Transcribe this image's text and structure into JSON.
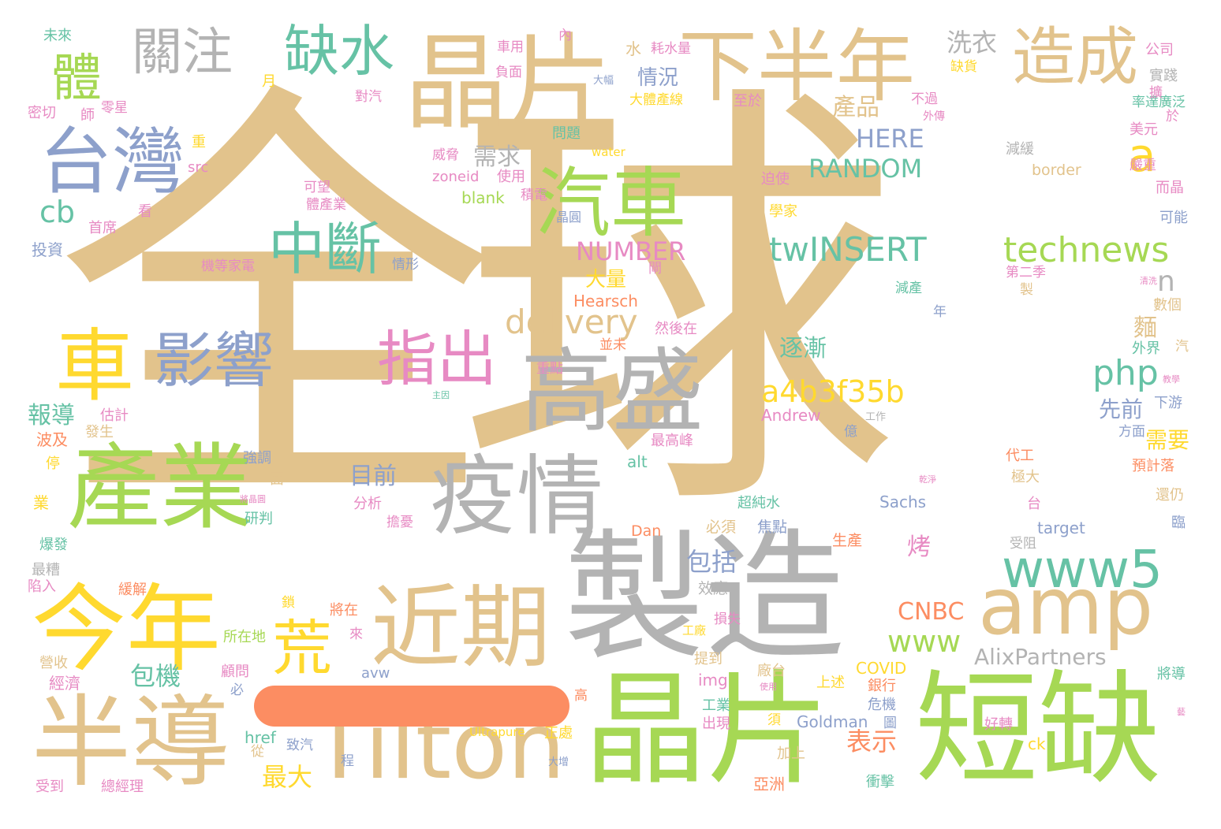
{
  "palette": {
    "tan": "#e2c38c",
    "gray": "#b3b3b3",
    "green": "#a6d854",
    "teal": "#66c2a5",
    "blue": "#8da0cb",
    "pink": "#e78ac3",
    "yellow": "#ffd92f",
    "orange": "#fc8d62"
  },
  "stroke_color": "#fc8d62",
  "words": [
    {
      "id": "quanqiu",
      "text": "全球",
      "color": "#e2c38c"
    },
    {
      "id": "jingpian-top",
      "text": "晶片",
      "color": "#e2c38c"
    },
    {
      "id": "xiabannian",
      "text": "下半年",
      "color": "#e2c38c"
    },
    {
      "id": "zaocheng",
      "text": "造成",
      "color": "#e2c38c"
    },
    {
      "id": "guanzhu",
      "text": "關注",
      "color": "#b3b3b3"
    },
    {
      "id": "queshui",
      "text": "缺水",
      "color": "#66c2a5"
    },
    {
      "id": "ti",
      "text": "體",
      "color": "#a6d854"
    },
    {
      "id": "taiwan",
      "text": "台灣",
      "color": "#8da0cb"
    },
    {
      "id": "qiche",
      "text": "汽車",
      "color": "#a6d854"
    },
    {
      "id": "zhongduan",
      "text": "中斷",
      "color": "#66c2a5"
    },
    {
      "id": "che",
      "text": "車",
      "color": "#ffd92f"
    },
    {
      "id": "yingxiang",
      "text": "影響",
      "color": "#8da0cb"
    },
    {
      "id": "zhichu",
      "text": "指出",
      "color": "#e78ac3"
    },
    {
      "id": "gaosheng",
      "text": "高盛",
      "color": "#b3b3b3"
    },
    {
      "id": "chanye",
      "text": "產業",
      "color": "#a6d854"
    },
    {
      "id": "yiqing",
      "text": "疫情",
      "color": "#b3b3b3"
    },
    {
      "id": "zhizao",
      "text": "製造",
      "color": "#b3b3b3"
    },
    {
      "id": "jinnian",
      "text": "今年",
      "color": "#ffd92f"
    },
    {
      "id": "jinqi",
      "text": "近期",
      "color": "#e2c38c"
    },
    {
      "id": "huang",
      "text": "荒",
      "color": "#ffd92f"
    },
    {
      "id": "bandao",
      "text": "半導",
      "color": "#e2c38c"
    },
    {
      "id": "tilton",
      "text": "Tilton",
      "color": "#e2c38c"
    },
    {
      "id": "jingpian-bottom",
      "text": "晶片",
      "color": "#a6d854"
    },
    {
      "id": "duanque",
      "text": "短缺",
      "color": "#a6d854"
    },
    {
      "id": "amp",
      "text": "amp",
      "color": "#e2c38c"
    },
    {
      "id": "www5",
      "text": "www5",
      "color": "#66c2a5"
    },
    {
      "id": "technews",
      "text": "technews",
      "color": "#a6d854"
    },
    {
      "id": "twinsert",
      "text": "twINSERT",
      "color": "#66c2a5"
    },
    {
      "id": "a4b3f35b",
      "text": "a4b3f35b",
      "color": "#ffd92f"
    },
    {
      "id": "delivery",
      "text": "delivery",
      "color": "#e2c38c"
    },
    {
      "id": "php",
      "text": "php",
      "color": "#66c2a5"
    },
    {
      "id": "a",
      "text": "a",
      "color": "#ffd92f"
    },
    {
      "id": "cb",
      "text": "cb",
      "color": "#66c2a5"
    },
    {
      "id": "random",
      "text": "RANDOM",
      "color": "#66c2a5"
    },
    {
      "id": "here",
      "text": "HERE",
      "color": "#8da0cb"
    },
    {
      "id": "number",
      "text": "NUMBER",
      "color": "#e78ac3"
    },
    {
      "id": "www",
      "text": "www",
      "color": "#a6d854"
    },
    {
      "id": "cnbc",
      "text": "CNBC",
      "color": "#fc8d62"
    },
    {
      "id": "alixpartners",
      "text": "AlixPartners",
      "color": "#b3b3b3"
    },
    {
      "id": "n",
      "text": "n",
      "color": "#b3b3b3"
    },
    {
      "id": "xiyi",
      "text": "洗衣",
      "color": "#b3b3b3"
    },
    {
      "id": "chanpin",
      "text": "產品",
      "color": "#e2c38c"
    },
    {
      "id": "qingkuang",
      "text": "情況",
      "color": "#8da0cb"
    },
    {
      "id": "xuqiu",
      "text": "需求",
      "color": "#b3b3b3"
    },
    {
      "id": "zhujian",
      "text": "逐漸",
      "color": "#66c2a5"
    },
    {
      "id": "daliang",
      "text": "大量",
      "color": "#ffd92f"
    },
    {
      "id": "baodao",
      "text": "報導",
      "color": "#66c2a5"
    },
    {
      "id": "muqian",
      "text": "目前",
      "color": "#8da0cb"
    },
    {
      "id": "baokuo",
      "text": "包括",
      "color": "#8da0cb"
    },
    {
      "id": "baoji",
      "text": "包機",
      "color": "#66c2a5"
    },
    {
      "id": "zuida",
      "text": "最大",
      "color": "#ffd92f"
    },
    {
      "id": "biaoshi",
      "text": "表示",
      "color": "#fc8d62"
    },
    {
      "id": "xianqian",
      "text": "先前",
      "color": "#8da0cb"
    },
    {
      "id": "xuyao",
      "text": "需要",
      "color": "#ffd92f"
    },
    {
      "id": "kao",
      "text": "烤",
      "color": "#e78ac3"
    },
    {
      "id": "mian",
      "text": "麵",
      "color": "#e2c38c"
    },
    {
      "id": "weilai",
      "text": "未來",
      "color": "#66c2a5"
    },
    {
      "id": "mimie",
      "text": "密切",
      "color": "#e78ac3"
    },
    {
      "id": "touzi",
      "text": "投資",
      "color": "#8da0cb"
    },
    {
      "id": "shouxi",
      "text": "首席",
      "color": "#e78ac3"
    },
    {
      "id": "gongsi",
      "text": "公司",
      "color": "#e78ac3"
    },
    {
      "id": "shijian",
      "text": "實踐",
      "color": "#b3b3b3"
    },
    {
      "id": "meiyuan",
      "text": "美元",
      "color": "#e78ac3"
    },
    {
      "id": "yanzhong",
      "text": "嚴重",
      "color": "#e78ac3"
    },
    {
      "id": "erjing",
      "text": "而晶",
      "color": "#e78ac3"
    },
    {
      "id": "keneng",
      "text": "可能",
      "color": "#8da0cb"
    },
    {
      "id": "src",
      "text": "src",
      "color": "#e78ac3"
    },
    {
      "id": "water",
      "text": "water",
      "color": "#ffd92f"
    },
    {
      "id": "border",
      "text": "border",
      "color": "#e2c38c"
    },
    {
      "id": "zoneid",
      "text": "zoneid",
      "color": "#e78ac3"
    },
    {
      "id": "shiyong",
      "text": "使用",
      "color": "#e78ac3"
    },
    {
      "id": "blank",
      "text": "blank",
      "color": "#a6d854"
    },
    {
      "id": "hearsch",
      "text": "Hearsch",
      "color": "#fc8d62"
    },
    {
      "id": "andrew",
      "text": "Andrew",
      "color": "#e78ac3"
    },
    {
      "id": "alt",
      "text": "alt",
      "color": "#66c2a5"
    },
    {
      "id": "dan",
      "text": "Dan",
      "color": "#fc8d62"
    },
    {
      "id": "sachs",
      "text": "Sachs",
      "color": "#8da0cb"
    },
    {
      "id": "target",
      "text": "target",
      "color": "#8da0cb"
    },
    {
      "id": "covid",
      "text": "COVID",
      "color": "#ffd92f"
    },
    {
      "id": "goldman",
      "text": "Goldman",
      "color": "#8da0cb"
    },
    {
      "id": "img",
      "text": "img",
      "color": "#e78ac3"
    },
    {
      "id": "href",
      "text": "href",
      "color": "#66c2a5"
    },
    {
      "id": "avw",
      "text": "avw",
      "color": "#8da0cb"
    },
    {
      "id": "ultrapure",
      "text": "Ultrapure",
      "color": "#ffd92f"
    },
    {
      "id": "ck",
      "text": "ck",
      "color": "#ffd92f"
    },
    {
      "id": "jiajing",
      "text": "加上",
      "color": "#e2c38c"
    },
    {
      "id": "yazhou",
      "text": "亞洲",
      "color": "#fc8d62"
    },
    {
      "id": "chongji",
      "text": "衝擊",
      "color": "#66c2a5"
    },
    {
      "id": "yinhang",
      "text": "銀行",
      "color": "#fc8d62"
    },
    {
      "id": "weiji",
      "text": "危機",
      "color": "#8da0cb"
    },
    {
      "id": "haozhuan",
      "text": "好轉",
      "color": "#e78ac3"
    },
    {
      "id": "jiangdao",
      "text": "將導",
      "color": "#66c2a5"
    },
    {
      "id": "shengchan",
      "text": "生產",
      "color": "#fc8d62"
    },
    {
      "id": "bixu",
      "text": "必須",
      "color": "#e2c38c"
    },
    {
      "id": "jiaodian",
      "text": "焦點",
      "color": "#8da0cb"
    },
    {
      "id": "chaochunshui",
      "text": "超純水",
      "color": "#66c2a5"
    },
    {
      "id": "xiaoying",
      "text": "效應",
      "color": "#b3b3b3"
    },
    {
      "id": "fenxi",
      "text": "分析",
      "color": "#e78ac3"
    },
    {
      "id": "qiangdiao",
      "text": "強調",
      "color": "#8da0cb"
    },
    {
      "id": "yanpan",
      "text": "研判",
      "color": "#66c2a5"
    },
    {
      "id": "boji",
      "text": "波及",
      "color": "#fc8d62"
    },
    {
      "id": "fasheng",
      "text": "發生",
      "color": "#e2c38c"
    },
    {
      "id": "guji",
      "text": "估計",
      "color": "#e78ac3"
    },
    {
      "id": "baofa",
      "text": "爆發",
      "color": "#66c2a5"
    },
    {
      "id": "zuizao",
      "text": "最糟",
      "color": "#b3b3b3"
    },
    {
      "id": "xianru",
      "text": "陷入",
      "color": "#e78ac3"
    },
    {
      "id": "huanjie",
      "text": "緩解",
      "color": "#fc8d62"
    },
    {
      "id": "zhuanshou",
      "text": "營收",
      "color": "#e2c38c"
    },
    {
      "id": "jingji",
      "text": "經濟",
      "color": "#e78ac3"
    },
    {
      "id": "shoudao",
      "text": "受到",
      "color": "#e78ac3"
    },
    {
      "id": "zongjingli",
      "text": "總經理",
      "color": "#e78ac3"
    },
    {
      "id": "guwen",
      "text": "顧問",
      "color": "#e78ac3"
    },
    {
      "id": "suozaidi",
      "text": "所在地",
      "color": "#a6d854"
    },
    {
      "id": "jiangzai",
      "text": "將在",
      "color": "#fc8d62"
    },
    {
      "id": "tidao",
      "text": "提到",
      "color": "#e2c38c"
    },
    {
      "id": "gongye",
      "text": "工業",
      "color": "#66c2a5"
    },
    {
      "id": "chuxian",
      "text": "出現",
      "color": "#e78ac3"
    },
    {
      "id": "zhengchu",
      "text": "正處",
      "color": "#ffd92f"
    },
    {
      "id": "shangshu",
      "text": "上述",
      "color": "#ffd92f"
    },
    {
      "id": "changtai",
      "text": "廠台",
      "color": "#e2c38c"
    },
    {
      "id": "zuigaofeng",
      "text": "最高峰",
      "color": "#e78ac3"
    },
    {
      "id": "daikong",
      "text": "代工",
      "color": "#fc8d62"
    },
    {
      "id": "jida",
      "text": "極大",
      "color": "#e2c38c"
    },
    {
      "id": "huanreng",
      "text": "還仍",
      "color": "#e2c38c"
    },
    {
      "id": "shouzu",
      "text": "受阻",
      "color": "#b3b3b3"
    },
    {
      "id": "yujidang",
      "text": "預計落",
      "color": "#fc8d62"
    },
    {
      "id": "xiayou",
      "text": "下游",
      "color": "#8da0cb"
    },
    {
      "id": "fangmian",
      "text": "方面",
      "color": "#8da0cb"
    },
    {
      "id": "waijie",
      "text": "外界",
      "color": "#66c2a5"
    },
    {
      "id": "shuge",
      "text": "數個",
      "color": "#e2c38c"
    },
    {
      "id": "dierji",
      "text": "第二季",
      "color": "#e78ac3"
    },
    {
      "id": "jianchan",
      "text": "減產",
      "color": "#66c2a5"
    },
    {
      "id": "ranhouzai",
      "text": "然後在",
      "color": "#e78ac3"
    },
    {
      "id": "bingwei",
      "text": "並未",
      "color": "#fc8d62"
    },
    {
      "id": "zhongdian",
      "text": "重點",
      "color": "#e78ac3"
    },
    {
      "id": "xuejia",
      "text": "學家",
      "color": "#ffd92f"
    },
    {
      "id": "poshi",
      "text": "迫使",
      "color": "#e78ac3"
    },
    {
      "id": "zhiyu",
      "text": "至於",
      "color": "#e78ac3"
    },
    {
      "id": "wenti",
      "text": "問題",
      "color": "#66c2a5"
    },
    {
      "id": "jianhuan",
      "text": "減緩",
      "color": "#b3b3b3"
    },
    {
      "id": "weixie",
      "text": "威脅",
      "color": "#e78ac3"
    },
    {
      "id": "kewang",
      "text": "可望",
      "color": "#e78ac3"
    },
    {
      "id": "tichanye",
      "text": "體產業",
      "color": "#e78ac3"
    },
    {
      "id": "jidian",
      "text": "積電",
      "color": "#e78ac3"
    },
    {
      "id": "jingyuan",
      "text": "晶圓",
      "color": "#8da0cb"
    },
    {
      "id": "qingxing",
      "text": "情形",
      "color": "#8da0cb"
    },
    {
      "id": "jidengjiadian",
      "text": "機等家電",
      "color": "#e78ac3"
    },
    {
      "id": "duiqi",
      "text": "對汽",
      "color": "#e78ac3"
    },
    {
      "id": "shuqi",
      "text": "水",
      "color": "#e2c38c"
    },
    {
      "id": "chexing",
      "text": "車用",
      "color": "#e78ac3"
    },
    {
      "id": "haoshuiliang",
      "text": "耗水量",
      "color": "#e78ac3"
    },
    {
      "id": "fumian",
      "text": "負面",
      "color": "#e78ac3"
    },
    {
      "id": "quehuo",
      "text": "缺貨",
      "color": "#ffd92f"
    },
    {
      "id": "dazhang",
      "text": "大幅",
      "color": "#8da0cb"
    },
    {
      "id": "datichanxian",
      "text": "大體產線",
      "color": "#ffd92f"
    },
    {
      "id": "buguo",
      "text": "不過",
      "color": "#e78ac3"
    },
    {
      "id": "wailun",
      "text": "外傳",
      "color": "#e78ac3"
    },
    {
      "id": "lingxing",
      "text": "零星",
      "color": "#e78ac3"
    },
    {
      "id": "shi",
      "text": "師",
      "color": "#e78ac3"
    },
    {
      "id": "chesudu",
      "text": "率達廣泛",
      "color": "#66c2a5"
    },
    {
      "id": "yu",
      "text": "於",
      "color": "#e78ac3"
    },
    {
      "id": "nei",
      "text": "內",
      "color": "#e78ac3"
    },
    {
      "id": "yue",
      "text": "月",
      "color": "#ffd92f"
    },
    {
      "id": "zhong",
      "text": "重",
      "color": "#ffd92f"
    },
    {
      "id": "kan",
      "text": "看",
      "color": "#e78ac3"
    },
    {
      "id": "ting",
      "text": "停",
      "color": "#ffd92f"
    },
    {
      "id": "ye",
      "text": "業",
      "color": "#ffd92f"
    },
    {
      "id": "mianlai",
      "text": "面",
      "color": "#e2c38c"
    },
    {
      "id": "tai",
      "text": "台",
      "color": "#e78ac3"
    },
    {
      "id": "lin",
      "text": "臨",
      "color": "#8da0cb"
    },
    {
      "id": "bi",
      "text": "必",
      "color": "#8da0cb"
    },
    {
      "id": "cong",
      "text": "從",
      "color": "#e2c38c"
    },
    {
      "id": "cheng",
      "text": "程",
      "color": "#8da0cb"
    },
    {
      "id": "zhiqi",
      "text": "致汽",
      "color": "#8da0cb"
    },
    {
      "id": "suo",
      "text": "鎖",
      "color": "#ffd92f"
    },
    {
      "id": "lai",
      "text": "來",
      "color": "#e78ac3"
    },
    {
      "id": "gao",
      "text": "高",
      "color": "#fc8d62"
    },
    {
      "id": "xu",
      "text": "須",
      "color": "#ffd92f"
    },
    {
      "id": "tu",
      "text": "圖",
      "color": "#8da0cb"
    },
    {
      "id": "nian",
      "text": "年",
      "color": "#8da0cb"
    },
    {
      "id": "zhi",
      "text": "製",
      "color": "#e2c38c"
    },
    {
      "id": "qi",
      "text": "汽",
      "color": "#e2c38c"
    },
    {
      "id": "yi",
      "text": "億",
      "color": "#8da0cb"
    },
    {
      "id": "gongzuo",
      "text": "工作",
      "color": "#b3b3b3"
    },
    {
      "id": "kuo",
      "text": "擴",
      "color": "#e78ac3"
    },
    {
      "id": "danyou",
      "text": "擔憂",
      "color": "#e78ac3"
    },
    {
      "id": "sunshi",
      "text": "損失",
      "color": "#e78ac3"
    },
    {
      "id": "gongchang",
      "text": "工廠",
      "color": "#ffd92f"
    },
    {
      "id": "dazeng",
      "text": "大增",
      "color": "#8da0cb"
    },
    {
      "id": "gai",
      "text": "閘",
      "color": "#e78ac3"
    },
    {
      "id": "zhuyin",
      "text": "主因",
      "color": "#66c2a5"
    },
    {
      "id": "zhongjing",
      "text": "將晶圓",
      "color": "#e78ac3"
    },
    {
      "id": "qingchu",
      "text": "清洗",
      "color": "#e78ac3"
    },
    {
      "id": "jiaoxue",
      "text": "教學",
      "color": "#e78ac3"
    },
    {
      "id": "ganjing",
      "text": "乾淨",
      "color": "#e78ac3"
    },
    {
      "id": "shiyong2",
      "text": "使用",
      "color": "#e78ac3"
    },
    {
      "id": "sha",
      "text": "藝",
      "color": "#e78ac3"
    }
  ]
}
